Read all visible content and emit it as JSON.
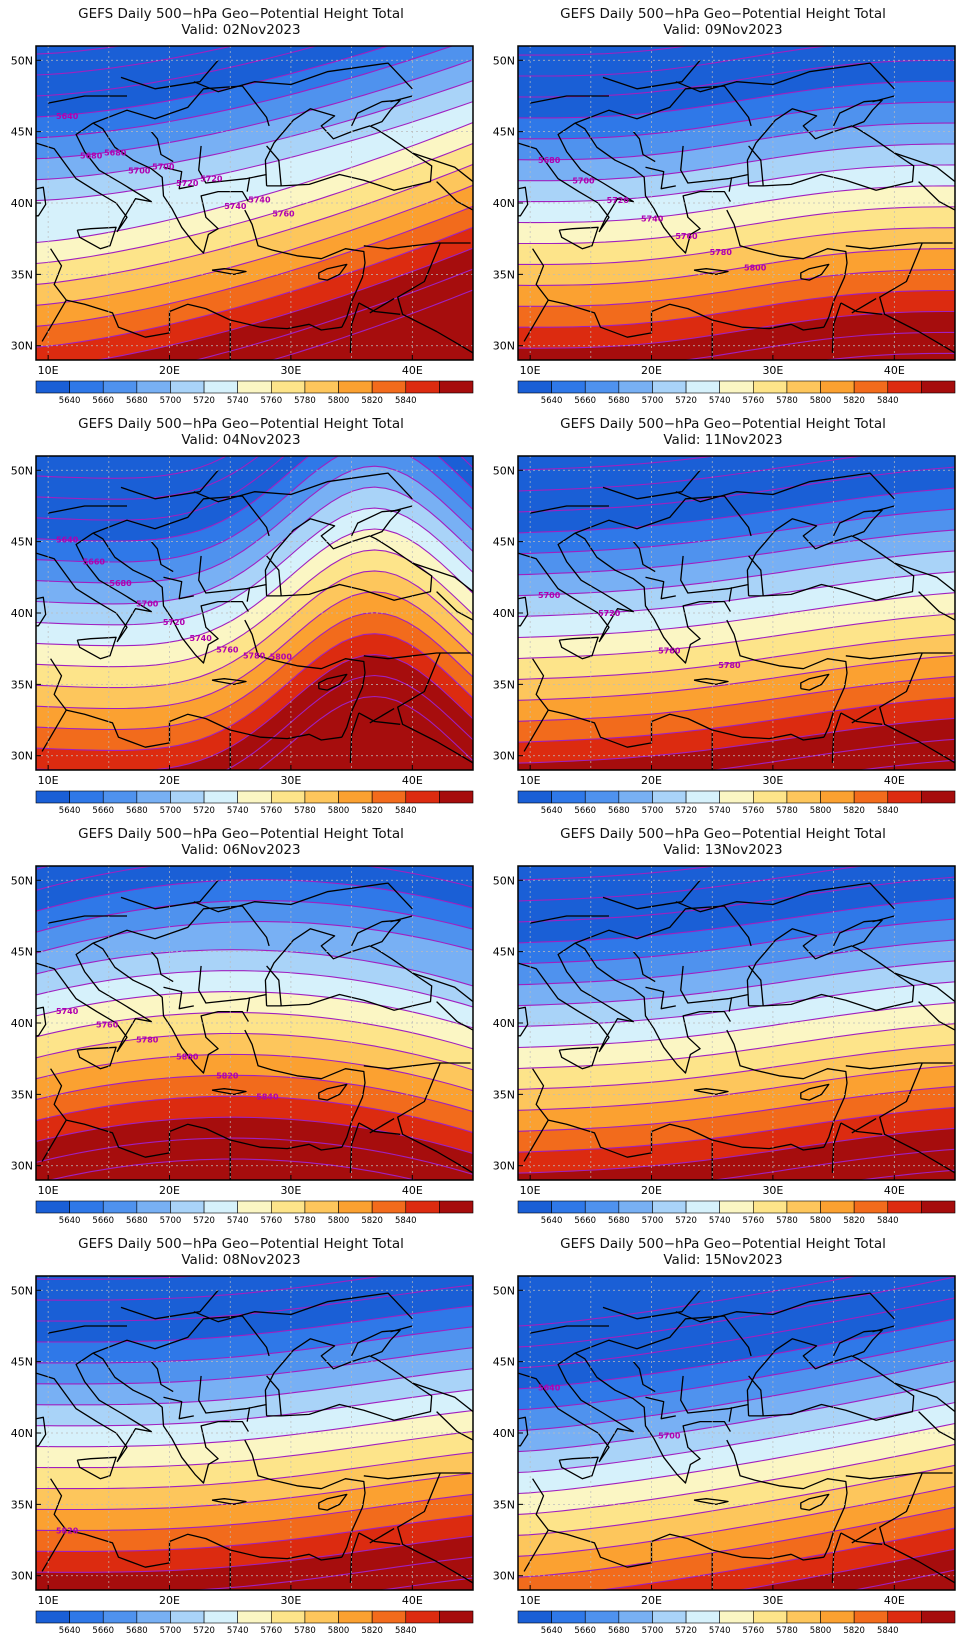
{
  "page": {
    "panel_title": "GEFS Daily 500−hPa Geo−Potential Height Total"
  },
  "colorbar": {
    "levels": [
      "5640",
      "5660",
      "5680",
      "5700",
      "5720",
      "5740",
      "5760",
      "5780",
      "5800",
      "5820",
      "5840"
    ],
    "colors": [
      "#1a5fd6",
      "#2f78e8",
      "#4f92ee",
      "#78b0f4",
      "#a9d3f8",
      "#d6f1fb",
      "#fbf6c4",
      "#fde48a",
      "#fdc65c",
      "#fba131",
      "#f26b1c",
      "#dc2b10",
      "#a60d0d"
    ]
  },
  "axes": {
    "lat_labels": [
      "50N",
      "45N",
      "40N",
      "35N",
      "30N"
    ],
    "lon_labels": [
      "10E",
      "20E",
      "30E",
      "40E"
    ],
    "gridlines": true,
    "contour_color": "#a020c0"
  },
  "panels": [
    {
      "id": "p1",
      "valid": "Valid:  02Nov2023",
      "pattern": "ridge-north",
      "labels": [
        "5640",
        "5680",
        "5680",
        "5700",
        "5700",
        "5720",
        "5720",
        "5740",
        "5740",
        "5760"
      ]
    },
    {
      "id": "p2",
      "valid": "Valid:  09Nov2023",
      "pattern": "zonal",
      "labels": [
        "5680",
        "5700",
        "5720",
        "5740",
        "5760",
        "5780",
        "5800"
      ]
    },
    {
      "id": "p3",
      "valid": "Valid:  04Nov2023",
      "pattern": "ridge-east",
      "labels": [
        "5640",
        "5660",
        "5680",
        "5700",
        "5720",
        "5740",
        "5760",
        "5780",
        "5800"
      ]
    },
    {
      "id": "p4",
      "valid": "Valid:  11Nov2023",
      "pattern": "zonal-weak",
      "labels": [
        "5700",
        "5720",
        "5760",
        "5780"
      ]
    },
    {
      "id": "p5",
      "valid": "Valid:  06Nov2023",
      "pattern": "ridge-south",
      "labels": [
        "5740",
        "5760",
        "5780",
        "5800",
        "5820",
        "5840"
      ]
    },
    {
      "id": "p6",
      "valid": "Valid:  13Nov2023",
      "pattern": "zonal-weak",
      "labels": []
    },
    {
      "id": "p7",
      "valid": "Valid:  08Nov2023",
      "pattern": "zonal-strong",
      "labels": [
        "5820"
      ]
    },
    {
      "id": "p8",
      "valid": "Valid:  15Nov2023",
      "pattern": "trough",
      "labels": [
        "5640",
        "5700"
      ]
    }
  ]
}
